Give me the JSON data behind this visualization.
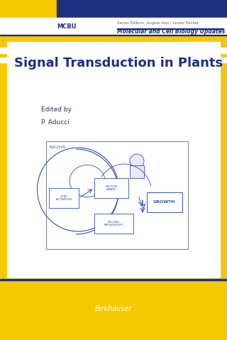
{
  "bg_color": "#F5C800",
  "dark_blue": "#1E3080",
  "mid_blue": "#2B4BA0",
  "white": "#FFFFFF",
  "title": "Signal Transduction in Plants",
  "edited_by": "Edited by",
  "author": "P. Aducci",
  "series_abbr": "MCBU",
  "series_label": "Series Editors: Angela Azzi / Lester Packer",
  "series_name": "Molecular and Cell Biology Updates",
  "publisher": "Birkhäuser",
  "diagram_color": "#3050B0"
}
